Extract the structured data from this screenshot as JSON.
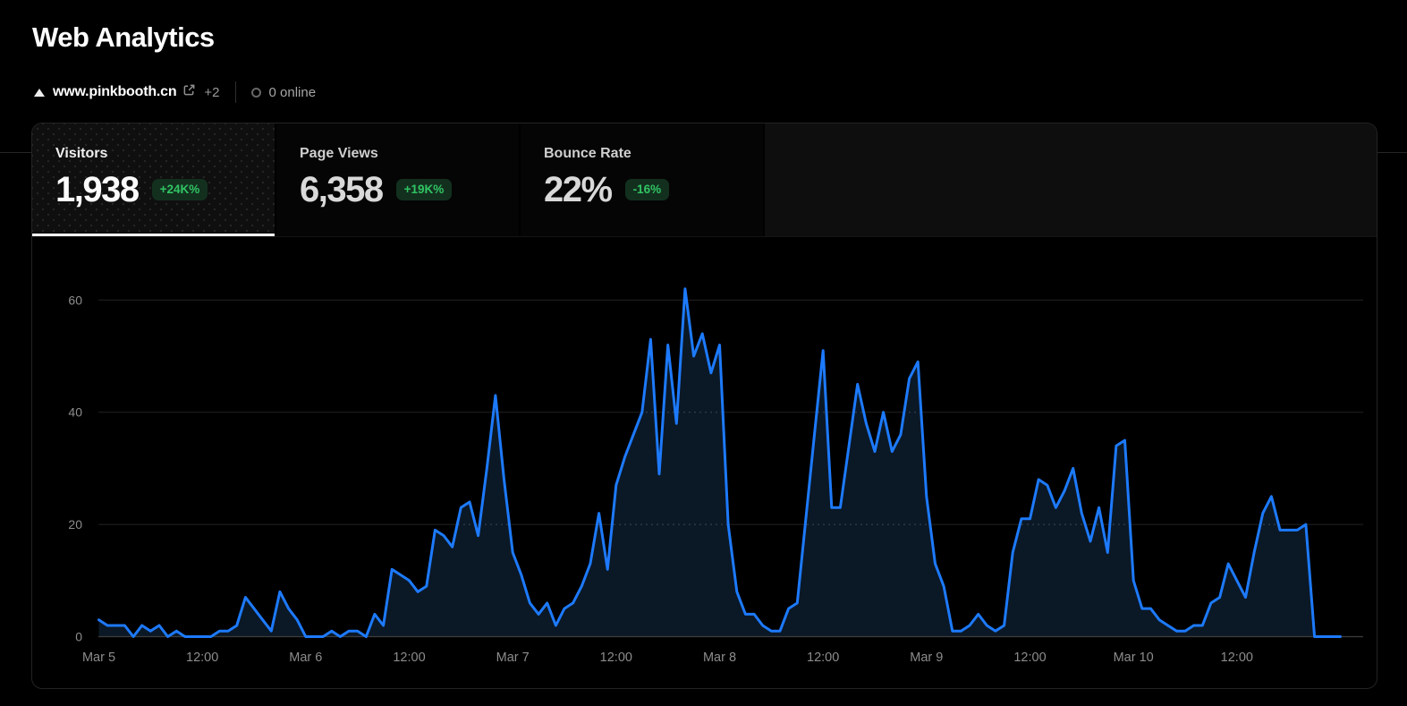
{
  "page": {
    "title": "Web Analytics"
  },
  "site": {
    "domain": "www.pinkbooth.cn",
    "more": "+2",
    "online": "0 online"
  },
  "icons": {
    "dropdown_triangle": "triangle-up",
    "external_link": "arrow-out-of-box",
    "online_status": "hollow-dot"
  },
  "tabs": [
    {
      "label": "Visitors",
      "value": "1,938",
      "delta": "+24K%",
      "selected": true
    },
    {
      "label": "Page Views",
      "value": "6,358",
      "delta": "+19K%",
      "selected": false
    },
    {
      "label": "Bounce Rate",
      "value": "22%",
      "delta": "-16%",
      "selected": false
    }
  ],
  "colors": {
    "background": "#000000",
    "line": "#1d7afc",
    "area_fill": "#0b1826",
    "grid": "#232323",
    "axis": "#3d3d3d",
    "tick_text": "#8c8c8c",
    "badge_bg": "#13301f",
    "badge_text": "#31c463",
    "selected_underline": "#ffffff"
  },
  "chart_data": {
    "type": "area",
    "title": "Visitors per hour",
    "xlabel": "",
    "ylabel": "",
    "x_start": "Mar 5 00:00",
    "interval_hours": 1,
    "x_tick_every_points": 12,
    "x_tick_labels": [
      "Mar 5",
      "12:00",
      "Mar 6",
      "12:00",
      "Mar 7",
      "12:00",
      "Mar 8",
      "12:00",
      "Mar 9",
      "12:00",
      "Mar 10",
      "12:00"
    ],
    "y_ticks": [
      0,
      20,
      40,
      60
    ],
    "ylim": [
      0,
      65
    ],
    "grid": "on",
    "legend": "none",
    "values": [
      3,
      2,
      2,
      2,
      0,
      2,
      1,
      2,
      0,
      1,
      0,
      0,
      0,
      0,
      1,
      1,
      2,
      7,
      5,
      3,
      1,
      8,
      5,
      3,
      0,
      0,
      0,
      1,
      0,
      1,
      1,
      0,
      4,
      2,
      12,
      11,
      10,
      8,
      9,
      19,
      18,
      16,
      23,
      24,
      18,
      30,
      43,
      28,
      15,
      11,
      6,
      4,
      6,
      2,
      5,
      6,
      9,
      13,
      22,
      12,
      27,
      32,
      36,
      40,
      53,
      29,
      52,
      38,
      62,
      50,
      54,
      47,
      52,
      20,
      8,
      4,
      4,
      2,
      1,
      1,
      5,
      6,
      21,
      36,
      51,
      23,
      23,
      34,
      45,
      38,
      33,
      40,
      33,
      36,
      46,
      49,
      25,
      13,
      9,
      1,
      1,
      2,
      4,
      2,
      1,
      2,
      15,
      21,
      21,
      28,
      27,
      23,
      26,
      30,
      22,
      17,
      23,
      15,
      34,
      35,
      10,
      5,
      5,
      3,
      2,
      1,
      1,
      2,
      2,
      6,
      7,
      13,
      10,
      7,
      15,
      22,
      25,
      19,
      19,
      19,
      20,
      0,
      0,
      0,
      0
    ]
  }
}
